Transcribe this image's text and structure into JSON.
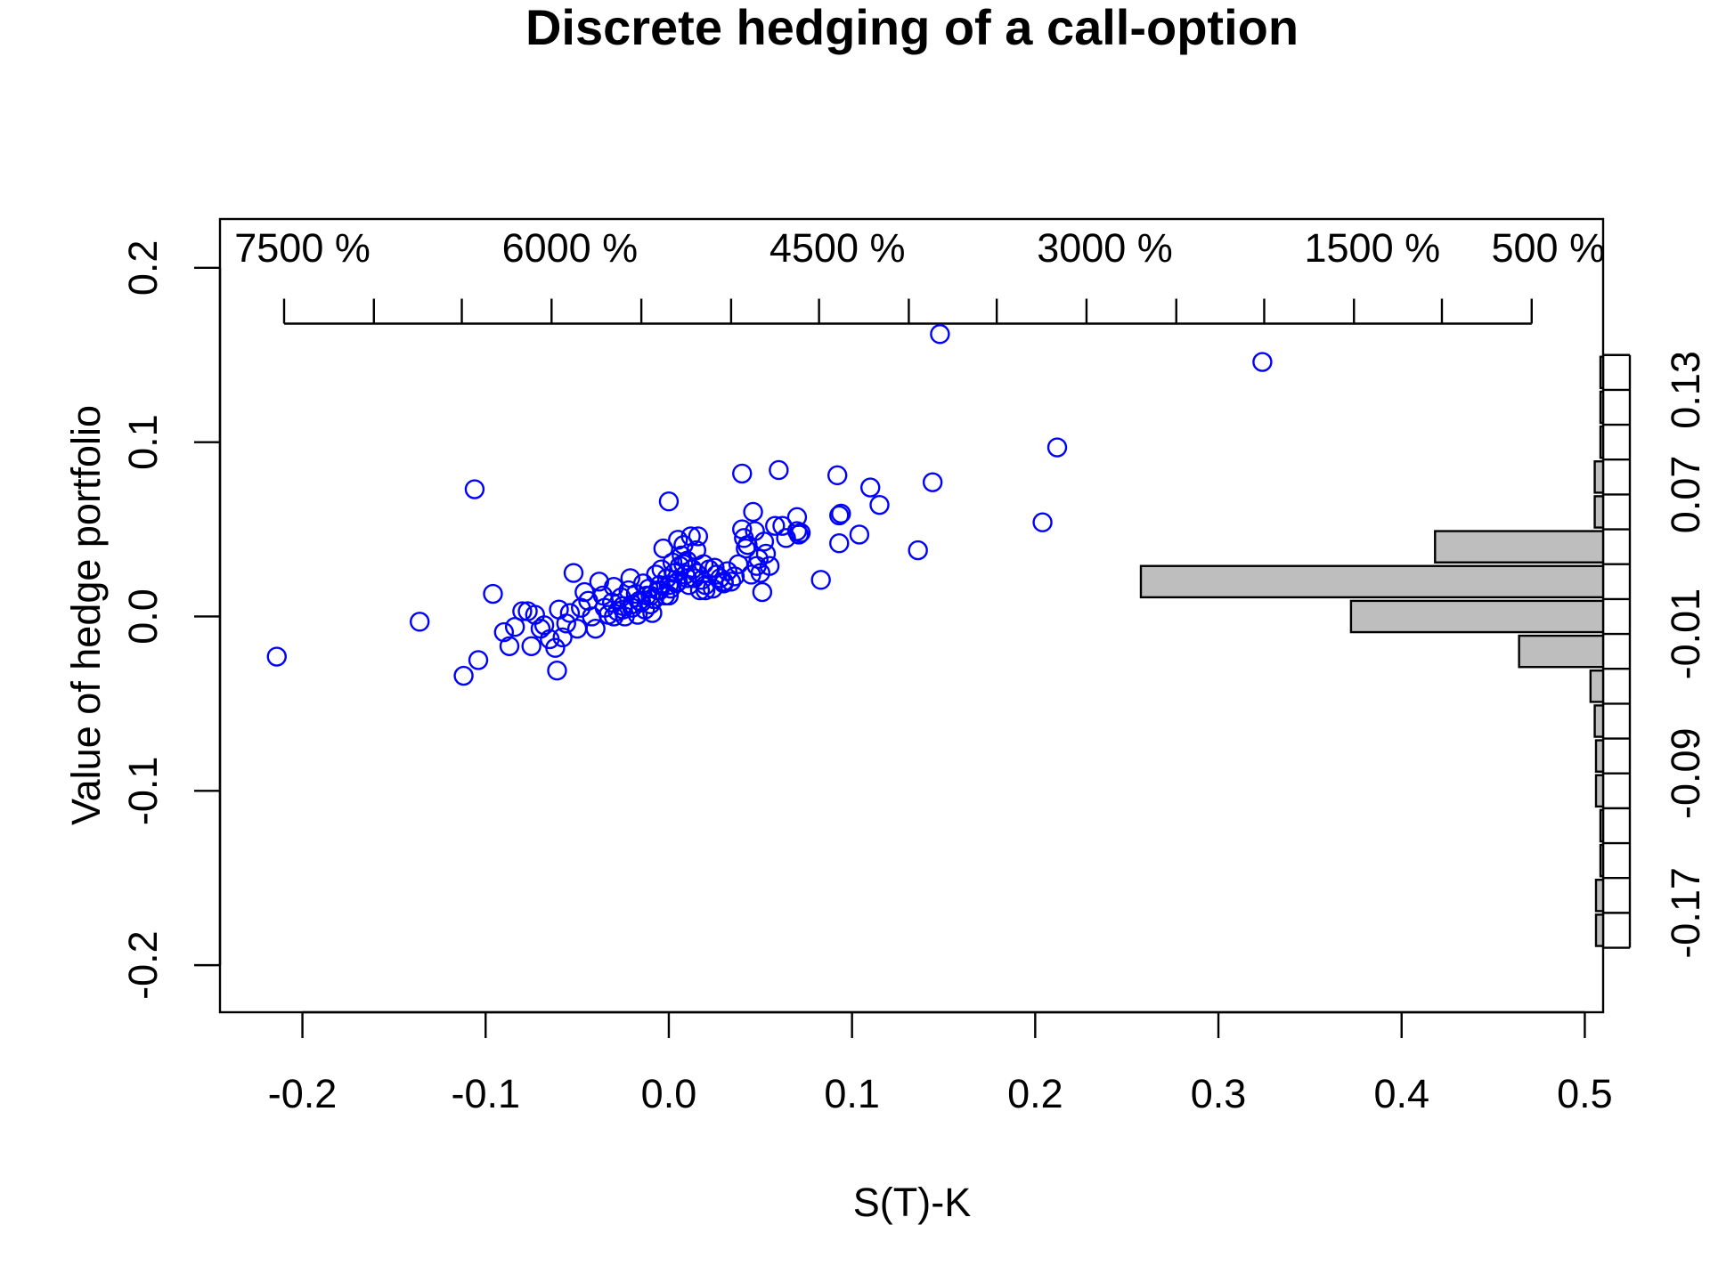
{
  "chart_data": {
    "type": "scatter",
    "title": "Discrete hedging of a call-option",
    "xlabel": "S(T)-K",
    "ylabel": "Value of hedge portfolio",
    "xlim": [
      -0.245,
      0.51
    ],
    "ylim": [
      -0.227,
      0.228
    ],
    "x_ticks": [
      -0.2,
      -0.1,
      0.0,
      0.1,
      0.2,
      0.3,
      0.4,
      0.5
    ],
    "x_tick_labels": [
      "-0.2",
      "-0.1",
      "0.0",
      "0.1",
      "0.2",
      "0.3",
      "0.4",
      "0.5"
    ],
    "y_ticks": [
      -0.2,
      -0.1,
      0.0,
      0.1,
      0.2
    ],
    "y_tick_labels": [
      "-0.2",
      "-0.1",
      "0.0",
      "0.1",
      "0.2"
    ],
    "point_color": "#0000ff",
    "grid": false,
    "series": [
      {
        "x": [
          -0.214,
          -0.136,
          -0.112,
          -0.106,
          -0.104,
          -0.096,
          -0.09,
          -0.087,
          -0.084,
          -0.08,
          -0.077,
          -0.075,
          -0.073,
          -0.07,
          -0.068,
          -0.065,
          -0.062,
          -0.061,
          -0.06,
          -0.058,
          -0.056,
          -0.054,
          -0.052,
          -0.05,
          -0.048,
          -0.046,
          -0.044,
          -0.042,
          -0.04,
          -0.038,
          -0.036,
          -0.035,
          -0.033,
          -0.031,
          -0.03,
          -0.028,
          -0.026,
          -0.025,
          -0.024,
          -0.022,
          -0.021,
          -0.02,
          -0.018,
          -0.017,
          -0.016,
          -0.014,
          -0.013,
          -0.012,
          -0.011,
          -0.01,
          -0.009,
          -0.008,
          -0.007,
          -0.006,
          -0.005,
          -0.004,
          -0.003,
          -0.002,
          -0.001,
          0.0,
          0.001,
          0.002,
          0.003,
          0.004,
          0.005,
          0.006,
          0.007,
          0.008,
          0.009,
          0.01,
          0.011,
          0.012,
          0.013,
          0.014,
          0.015,
          0.016,
          0.017,
          0.018,
          0.019,
          0.02,
          0.022,
          0.024,
          0.026,
          0.028,
          0.03,
          0.032,
          0.034,
          0.036,
          0.038,
          0.04,
          0.04,
          0.041,
          0.042,
          0.043,
          0.045,
          0.046,
          0.047,
          0.048,
          0.049,
          0.05,
          0.051,
          0.052,
          0.053,
          0.055,
          0.058,
          0.06,
          0.062,
          0.064,
          0.07,
          0.07,
          0.071,
          0.072,
          0.083,
          0.092,
          0.093,
          0.093,
          0.094,
          0.104,
          0.11,
          0.115,
          0.136,
          0.144,
          0.148,
          0.204,
          0.212,
          0.324,
          -0.02,
          -0.015,
          -0.01,
          -0.005,
          0.0,
          0.005,
          0.01,
          0.015,
          -0.03,
          -0.025,
          0.025,
          0.03,
          0.02,
          -0.008,
          0.008,
          0.0
        ],
        "y": [
          -0.023,
          -0.003,
          -0.034,
          0.073,
          -0.025,
          0.013,
          -0.009,
          -0.017,
          -0.006,
          0.003,
          0.003,
          -0.017,
          0.001,
          -0.007,
          -0.005,
          -0.013,
          -0.018,
          -0.031,
          0.004,
          -0.012,
          -0.004,
          0.002,
          0.025,
          -0.007,
          0.005,
          0.014,
          0.009,
          0.0,
          -0.007,
          0.02,
          0.012,
          0.005,
          0.001,
          0.008,
          0.017,
          0.003,
          0.011,
          0.006,
          0.0,
          0.015,
          0.022,
          0.007,
          0.013,
          0.001,
          0.009,
          0.019,
          0.004,
          0.012,
          0.016,
          0.007,
          0.002,
          0.01,
          0.024,
          0.015,
          0.018,
          0.027,
          0.039,
          0.012,
          0.022,
          0.066,
          0.016,
          0.031,
          0.025,
          0.019,
          0.044,
          0.029,
          0.035,
          0.041,
          0.024,
          0.032,
          0.018,
          0.046,
          0.027,
          0.022,
          0.038,
          0.046,
          0.015,
          0.021,
          0.03,
          0.018,
          0.027,
          0.016,
          0.024,
          0.022,
          0.019,
          0.026,
          0.02,
          0.023,
          0.03,
          0.082,
          0.05,
          0.045,
          0.039,
          0.041,
          0.024,
          0.06,
          0.049,
          0.029,
          0.033,
          0.025,
          0.014,
          0.043,
          0.036,
          0.029,
          0.052,
          0.084,
          0.052,
          0.045,
          0.057,
          0.049,
          0.047,
          0.048,
          0.021,
          0.081,
          0.058,
          0.042,
          0.059,
          0.047,
          0.074,
          0.064,
          0.038,
          0.077,
          0.162,
          0.054,
          0.097,
          0.146,
          0.005,
          0.008,
          0.012,
          0.015,
          0.018,
          0.02,
          0.022,
          0.025,
          0.0,
          0.004,
          0.028,
          0.02,
          0.015,
          0.01,
          0.03,
          0.012
        ]
      }
    ],
    "top_axis": {
      "labels": [
        "7500 %",
        "6000 %",
        "4500 %",
        "3000 %",
        "1500 %",
        "500 %"
      ],
      "label_x": [
        -0.2,
        -0.054,
        0.092,
        0.238,
        0.384,
        0.48
      ],
      "tick_x": [
        -0.21,
        -0.161,
        -0.113,
        -0.064,
        -0.015,
        0.034,
        0.082,
        0.131,
        0.179,
        0.228,
        0.277,
        0.325,
        0.374,
        0.422,
        0.471
      ],
      "y": 0.168
    },
    "histogram": {
      "orientation": "horizontal",
      "bar_color": "#bebebe",
      "bin_edges": [
        -0.19,
        -0.17,
        -0.15,
        -0.13,
        -0.11,
        -0.09,
        -0.07,
        -0.05,
        -0.03,
        -0.01,
        0.01,
        0.03,
        0.05,
        0.07,
        0.09,
        0.11,
        0.13,
        0.15
      ],
      "counts": [
        1,
        1,
        0,
        0,
        1,
        1,
        2,
        3,
        20,
        60,
        110,
        40,
        2,
        2,
        0,
        0,
        0
      ],
      "right_axis_ticks": [
        -0.17,
        -0.09,
        -0.01,
        0.07,
        0.13
      ],
      "right_axis_tick_labels": [
        "-0.17",
        "-0.09",
        "-0.01",
        "0.07",
        "0.13"
      ]
    }
  }
}
